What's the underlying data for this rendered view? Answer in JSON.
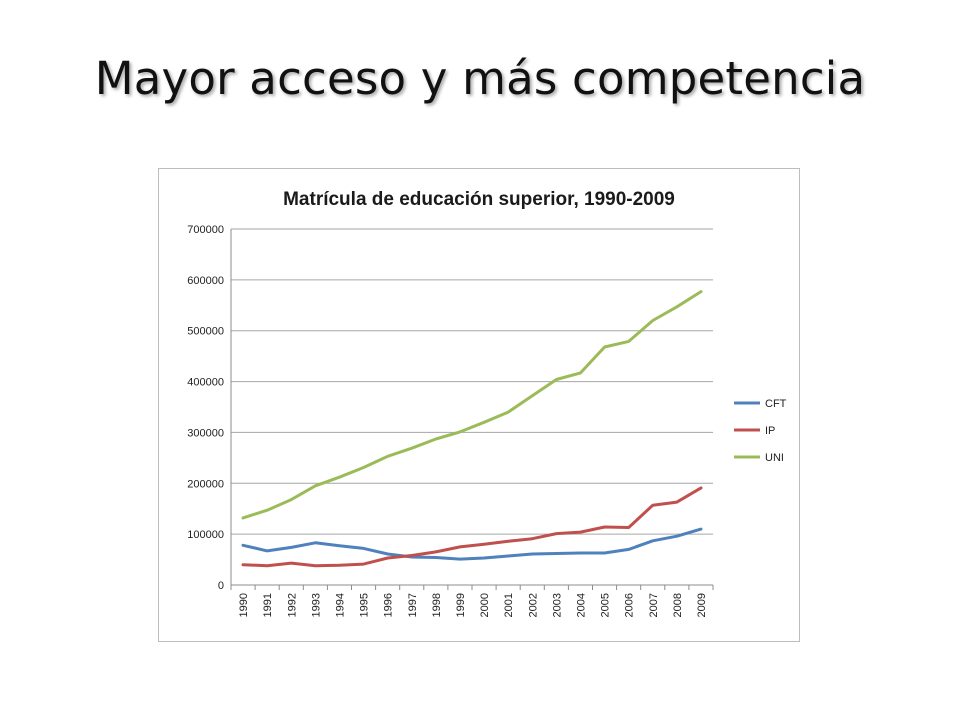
{
  "slide": {
    "title": "Mayor acceso y más competencia"
  },
  "chart_data": {
    "type": "line",
    "title": "Matrícula de educación superior, 1990-2009",
    "xlabel": "",
    "ylabel": "",
    "ylim": [
      0,
      700000
    ],
    "yticks": [
      "0",
      "100000",
      "200000",
      "300000",
      "400000",
      "500000",
      "600000",
      "700000"
    ],
    "x": [
      "1990",
      "1991",
      "1992",
      "1993",
      "1994",
      "1995",
      "1996",
      "1997",
      "1998",
      "1999",
      "2000",
      "2001",
      "2002",
      "2003",
      "2004",
      "2005",
      "2006",
      "2007",
      "2008",
      "2009"
    ],
    "grid": true,
    "legend_position": "right",
    "series": [
      {
        "name": "CFT",
        "color": "#4f81bd",
        "values": [
          78000,
          67000,
          74000,
          83000,
          77000,
          72000,
          61000,
          55000,
          54000,
          51000,
          53000,
          57000,
          61000,
          62000,
          63000,
          63000,
          70000,
          87000,
          96000,
          110000
        ]
      },
      {
        "name": "IP",
        "color": "#c0504d",
        "values": [
          40000,
          38000,
          43000,
          38000,
          39000,
          41000,
          53000,
          58000,
          65000,
          75000,
          80000,
          86000,
          91000,
          101000,
          104000,
          114000,
          113000,
          157000,
          163000,
          191000
        ]
      },
      {
        "name": "UNI",
        "color": "#9bbb59",
        "values": [
          132000,
          147000,
          168000,
          195000,
          212000,
          231000,
          253000,
          269000,
          287000,
          301000,
          320000,
          340000,
          372000,
          404000,
          417000,
          468000,
          479000,
          520000,
          547000,
          577000
        ]
      }
    ]
  }
}
